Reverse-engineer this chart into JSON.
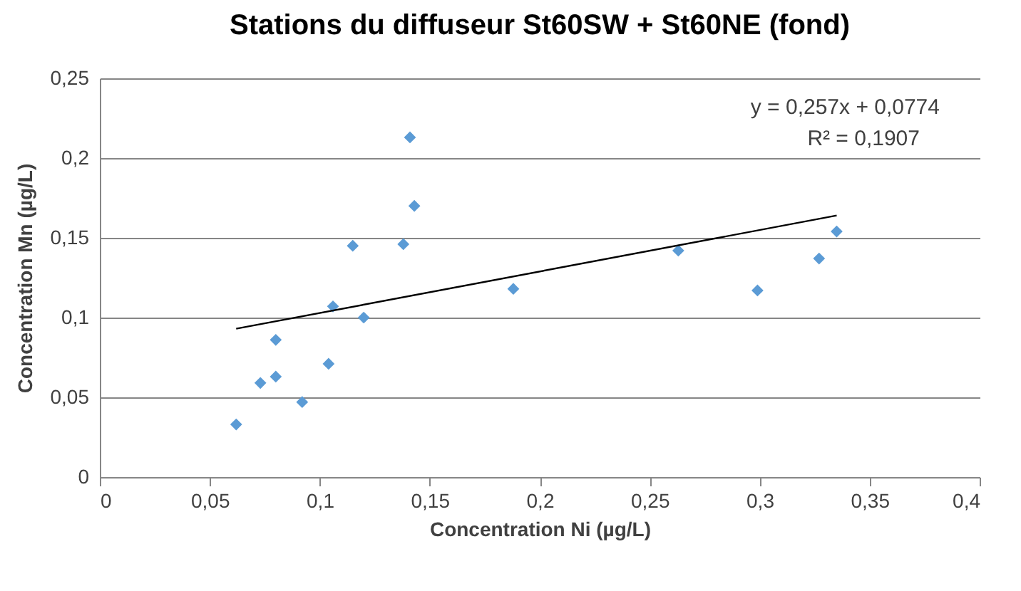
{
  "chart_data": {
    "type": "scatter",
    "title": "Stations du diffuseur St60SW + St60NE (fond)",
    "xlabel": "Concentration Ni (µg/L)",
    "ylabel": "Concentration Mn (µg/L)",
    "annotations": [
      "y = 0,257x + 0,0774",
      "R² = 0,1907"
    ],
    "xlim": [
      0,
      0.4
    ],
    "ylim": [
      0,
      0.25
    ],
    "xticks": [
      0,
      {
        "value": 0.05,
        "label": "0,05"
      },
      {
        "value": 0.1,
        "label": "0,1"
      },
      {
        "value": 0.15,
        "label": "0,15"
      },
      {
        "value": 0.2,
        "label": "0,2"
      },
      {
        "value": 0.25,
        "label": "0,25"
      },
      {
        "value": 0.3,
        "label": "0,3"
      },
      {
        "value": 0.35,
        "label": "0,35"
      },
      {
        "value": 0.4,
        "label": "0,4"
      }
    ],
    "yticks": [
      0,
      {
        "value": 0.05,
        "label": "0,05"
      },
      {
        "value": 0.1,
        "label": "0,1"
      },
      {
        "value": 0.15,
        "label": "0,15"
      },
      {
        "value": 0.2,
        "label": "0,2"
      },
      {
        "value": 0.25,
        "label": "0,25"
      }
    ],
    "grid": "y",
    "series": [
      {
        "marker": "diamond",
        "color": "#5b9bd5",
        "x": [
          0.062,
          0.073,
          0.08,
          0.08,
          0.092,
          0.104,
          0.106,
          0.115,
          0.12,
          0.138,
          0.141,
          0.143,
          0.188,
          0.263,
          0.299,
          0.327,
          0.335
        ],
        "values": [
          0.033,
          0.059,
          0.063,
          0.086,
          0.047,
          0.071,
          0.107,
          0.145,
          0.1,
          0.146,
          0.213,
          0.17,
          0.118,
          0.142,
          0.117,
          0.137,
          0.154
        ]
      },
      {
        "type": "line",
        "color": "#000000",
        "x": [
          0.062,
          0.335
        ],
        "values": [
          0.093,
          0.164
        ]
      }
    ]
  }
}
